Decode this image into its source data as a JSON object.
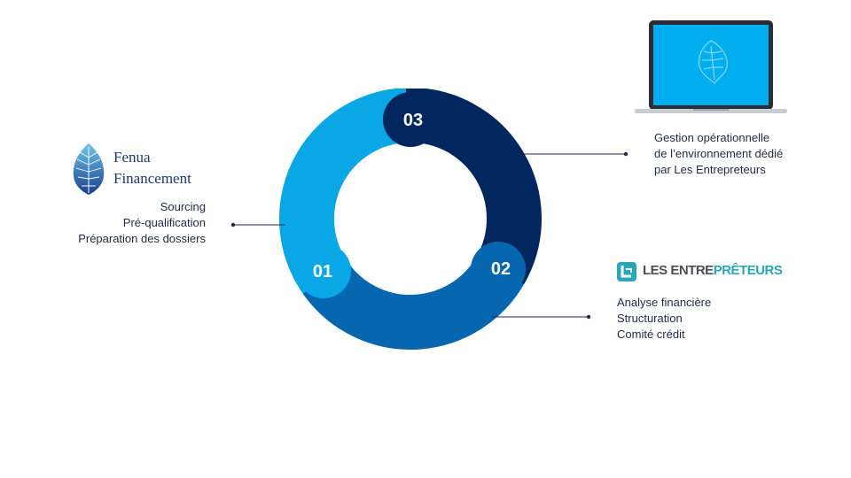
{
  "colors": {
    "light_blue": "#0aa7e6",
    "mid_blue": "#0766b0",
    "dark_navy": "#02265e",
    "text": "#1f2a44",
    "screen": "#00aeef"
  },
  "cycle": {
    "steps": [
      {
        "number": "01",
        "color": "#0aa7e6"
      },
      {
        "number": "02",
        "color": "#0766b0"
      },
      {
        "number": "03",
        "color": "#02265e"
      }
    ]
  },
  "fenua": {
    "name_line1": "Fenua",
    "name_line2": "Financement",
    "items": [
      "Sourcing",
      "Pré-qualification",
      "Préparation des dossiers"
    ]
  },
  "les_entrepreteurs": {
    "logo_part1": "LES ENTRE",
    "logo_part2": "PRÊTEURS",
    "items": [
      "Analyse financière",
      "Structuration",
      "Comité crédit"
    ]
  },
  "management": {
    "lines": [
      "Gestion opérationnelle",
      "de l’environnement dédié",
      "par Les Entrepreteurs"
    ]
  },
  "icons": {
    "fenua": "fenua-leaf-logo-icon",
    "les_entrepreteurs": "les-entrepreteurs-logo-icon",
    "laptop": "laptop-icon"
  }
}
